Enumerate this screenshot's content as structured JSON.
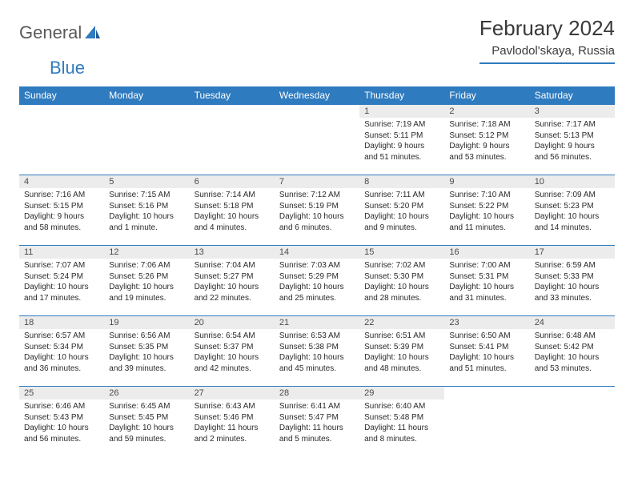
{
  "brand": {
    "general": "General",
    "blue": "Blue"
  },
  "title": "February 2024",
  "location": "Pavlodol'skaya, Russia",
  "colors": {
    "accent": "#2f7bbf",
    "header_bg": "#2f7bbf",
    "header_text": "#ffffff",
    "daynum_bg": "#ececec",
    "text": "#2a2a2a",
    "logo_gray": "#5a5a5a"
  },
  "weekday_labels": [
    "Sunday",
    "Monday",
    "Tuesday",
    "Wednesday",
    "Thursday",
    "Friday",
    "Saturday"
  ],
  "weeks": [
    [
      null,
      null,
      null,
      null,
      {
        "n": "1",
        "sunrise": "7:19 AM",
        "sunset": "5:11 PM",
        "daylight": "9 hours and 51 minutes."
      },
      {
        "n": "2",
        "sunrise": "7:18 AM",
        "sunset": "5:12 PM",
        "daylight": "9 hours and 53 minutes."
      },
      {
        "n": "3",
        "sunrise": "7:17 AM",
        "sunset": "5:13 PM",
        "daylight": "9 hours and 56 minutes."
      }
    ],
    [
      {
        "n": "4",
        "sunrise": "7:16 AM",
        "sunset": "5:15 PM",
        "daylight": "9 hours and 58 minutes."
      },
      {
        "n": "5",
        "sunrise": "7:15 AM",
        "sunset": "5:16 PM",
        "daylight": "10 hours and 1 minute."
      },
      {
        "n": "6",
        "sunrise": "7:14 AM",
        "sunset": "5:18 PM",
        "daylight": "10 hours and 4 minutes."
      },
      {
        "n": "7",
        "sunrise": "7:12 AM",
        "sunset": "5:19 PM",
        "daylight": "10 hours and 6 minutes."
      },
      {
        "n": "8",
        "sunrise": "7:11 AM",
        "sunset": "5:20 PM",
        "daylight": "10 hours and 9 minutes."
      },
      {
        "n": "9",
        "sunrise": "7:10 AM",
        "sunset": "5:22 PM",
        "daylight": "10 hours and 11 minutes."
      },
      {
        "n": "10",
        "sunrise": "7:09 AM",
        "sunset": "5:23 PM",
        "daylight": "10 hours and 14 minutes."
      }
    ],
    [
      {
        "n": "11",
        "sunrise": "7:07 AM",
        "sunset": "5:24 PM",
        "daylight": "10 hours and 17 minutes."
      },
      {
        "n": "12",
        "sunrise": "7:06 AM",
        "sunset": "5:26 PM",
        "daylight": "10 hours and 19 minutes."
      },
      {
        "n": "13",
        "sunrise": "7:04 AM",
        "sunset": "5:27 PM",
        "daylight": "10 hours and 22 minutes."
      },
      {
        "n": "14",
        "sunrise": "7:03 AM",
        "sunset": "5:29 PM",
        "daylight": "10 hours and 25 minutes."
      },
      {
        "n": "15",
        "sunrise": "7:02 AM",
        "sunset": "5:30 PM",
        "daylight": "10 hours and 28 minutes."
      },
      {
        "n": "16",
        "sunrise": "7:00 AM",
        "sunset": "5:31 PM",
        "daylight": "10 hours and 31 minutes."
      },
      {
        "n": "17",
        "sunrise": "6:59 AM",
        "sunset": "5:33 PM",
        "daylight": "10 hours and 33 minutes."
      }
    ],
    [
      {
        "n": "18",
        "sunrise": "6:57 AM",
        "sunset": "5:34 PM",
        "daylight": "10 hours and 36 minutes."
      },
      {
        "n": "19",
        "sunrise": "6:56 AM",
        "sunset": "5:35 PM",
        "daylight": "10 hours and 39 minutes."
      },
      {
        "n": "20",
        "sunrise": "6:54 AM",
        "sunset": "5:37 PM",
        "daylight": "10 hours and 42 minutes."
      },
      {
        "n": "21",
        "sunrise": "6:53 AM",
        "sunset": "5:38 PM",
        "daylight": "10 hours and 45 minutes."
      },
      {
        "n": "22",
        "sunrise": "6:51 AM",
        "sunset": "5:39 PM",
        "daylight": "10 hours and 48 minutes."
      },
      {
        "n": "23",
        "sunrise": "6:50 AM",
        "sunset": "5:41 PM",
        "daylight": "10 hours and 51 minutes."
      },
      {
        "n": "24",
        "sunrise": "6:48 AM",
        "sunset": "5:42 PM",
        "daylight": "10 hours and 53 minutes."
      }
    ],
    [
      {
        "n": "25",
        "sunrise": "6:46 AM",
        "sunset": "5:43 PM",
        "daylight": "10 hours and 56 minutes."
      },
      {
        "n": "26",
        "sunrise": "6:45 AM",
        "sunset": "5:45 PM",
        "daylight": "10 hours and 59 minutes."
      },
      {
        "n": "27",
        "sunrise": "6:43 AM",
        "sunset": "5:46 PM",
        "daylight": "11 hours and 2 minutes."
      },
      {
        "n": "28",
        "sunrise": "6:41 AM",
        "sunset": "5:47 PM",
        "daylight": "11 hours and 5 minutes."
      },
      {
        "n": "29",
        "sunrise": "6:40 AM",
        "sunset": "5:48 PM",
        "daylight": "11 hours and 8 minutes."
      },
      null,
      null
    ]
  ]
}
